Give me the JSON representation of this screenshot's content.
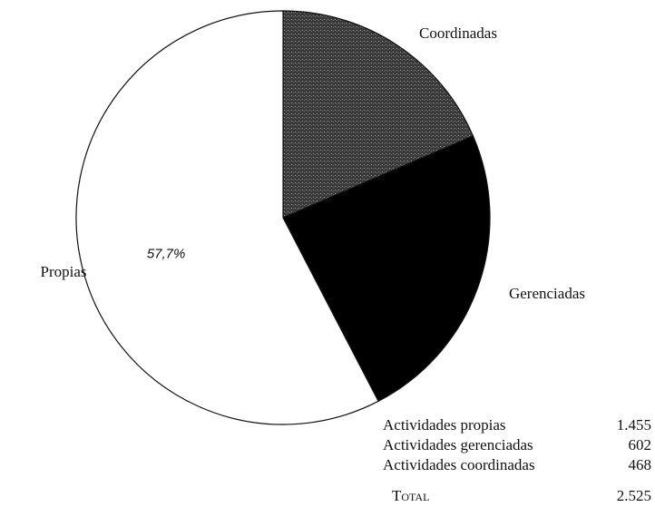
{
  "chart_data": {
    "type": "pie",
    "categories": [
      "Coordinadas",
      "Gerenciadas",
      "Propias"
    ],
    "values": [
      468,
      602,
      1455
    ],
    "colors": [
      "#4a4a4a",
      "#000000",
      "#ffffff"
    ],
    "annotations": [
      {
        "text": "57,7%",
        "slice": 2
      }
    ]
  },
  "table": {
    "rows": [
      [
        "Actividades propias",
        "1.455"
      ],
      [
        "Actividades gerenciadas",
        "602"
      ],
      [
        "Actividades coordinadas",
        "468"
      ]
    ],
    "total": [
      "Total",
      "2.525"
    ]
  }
}
